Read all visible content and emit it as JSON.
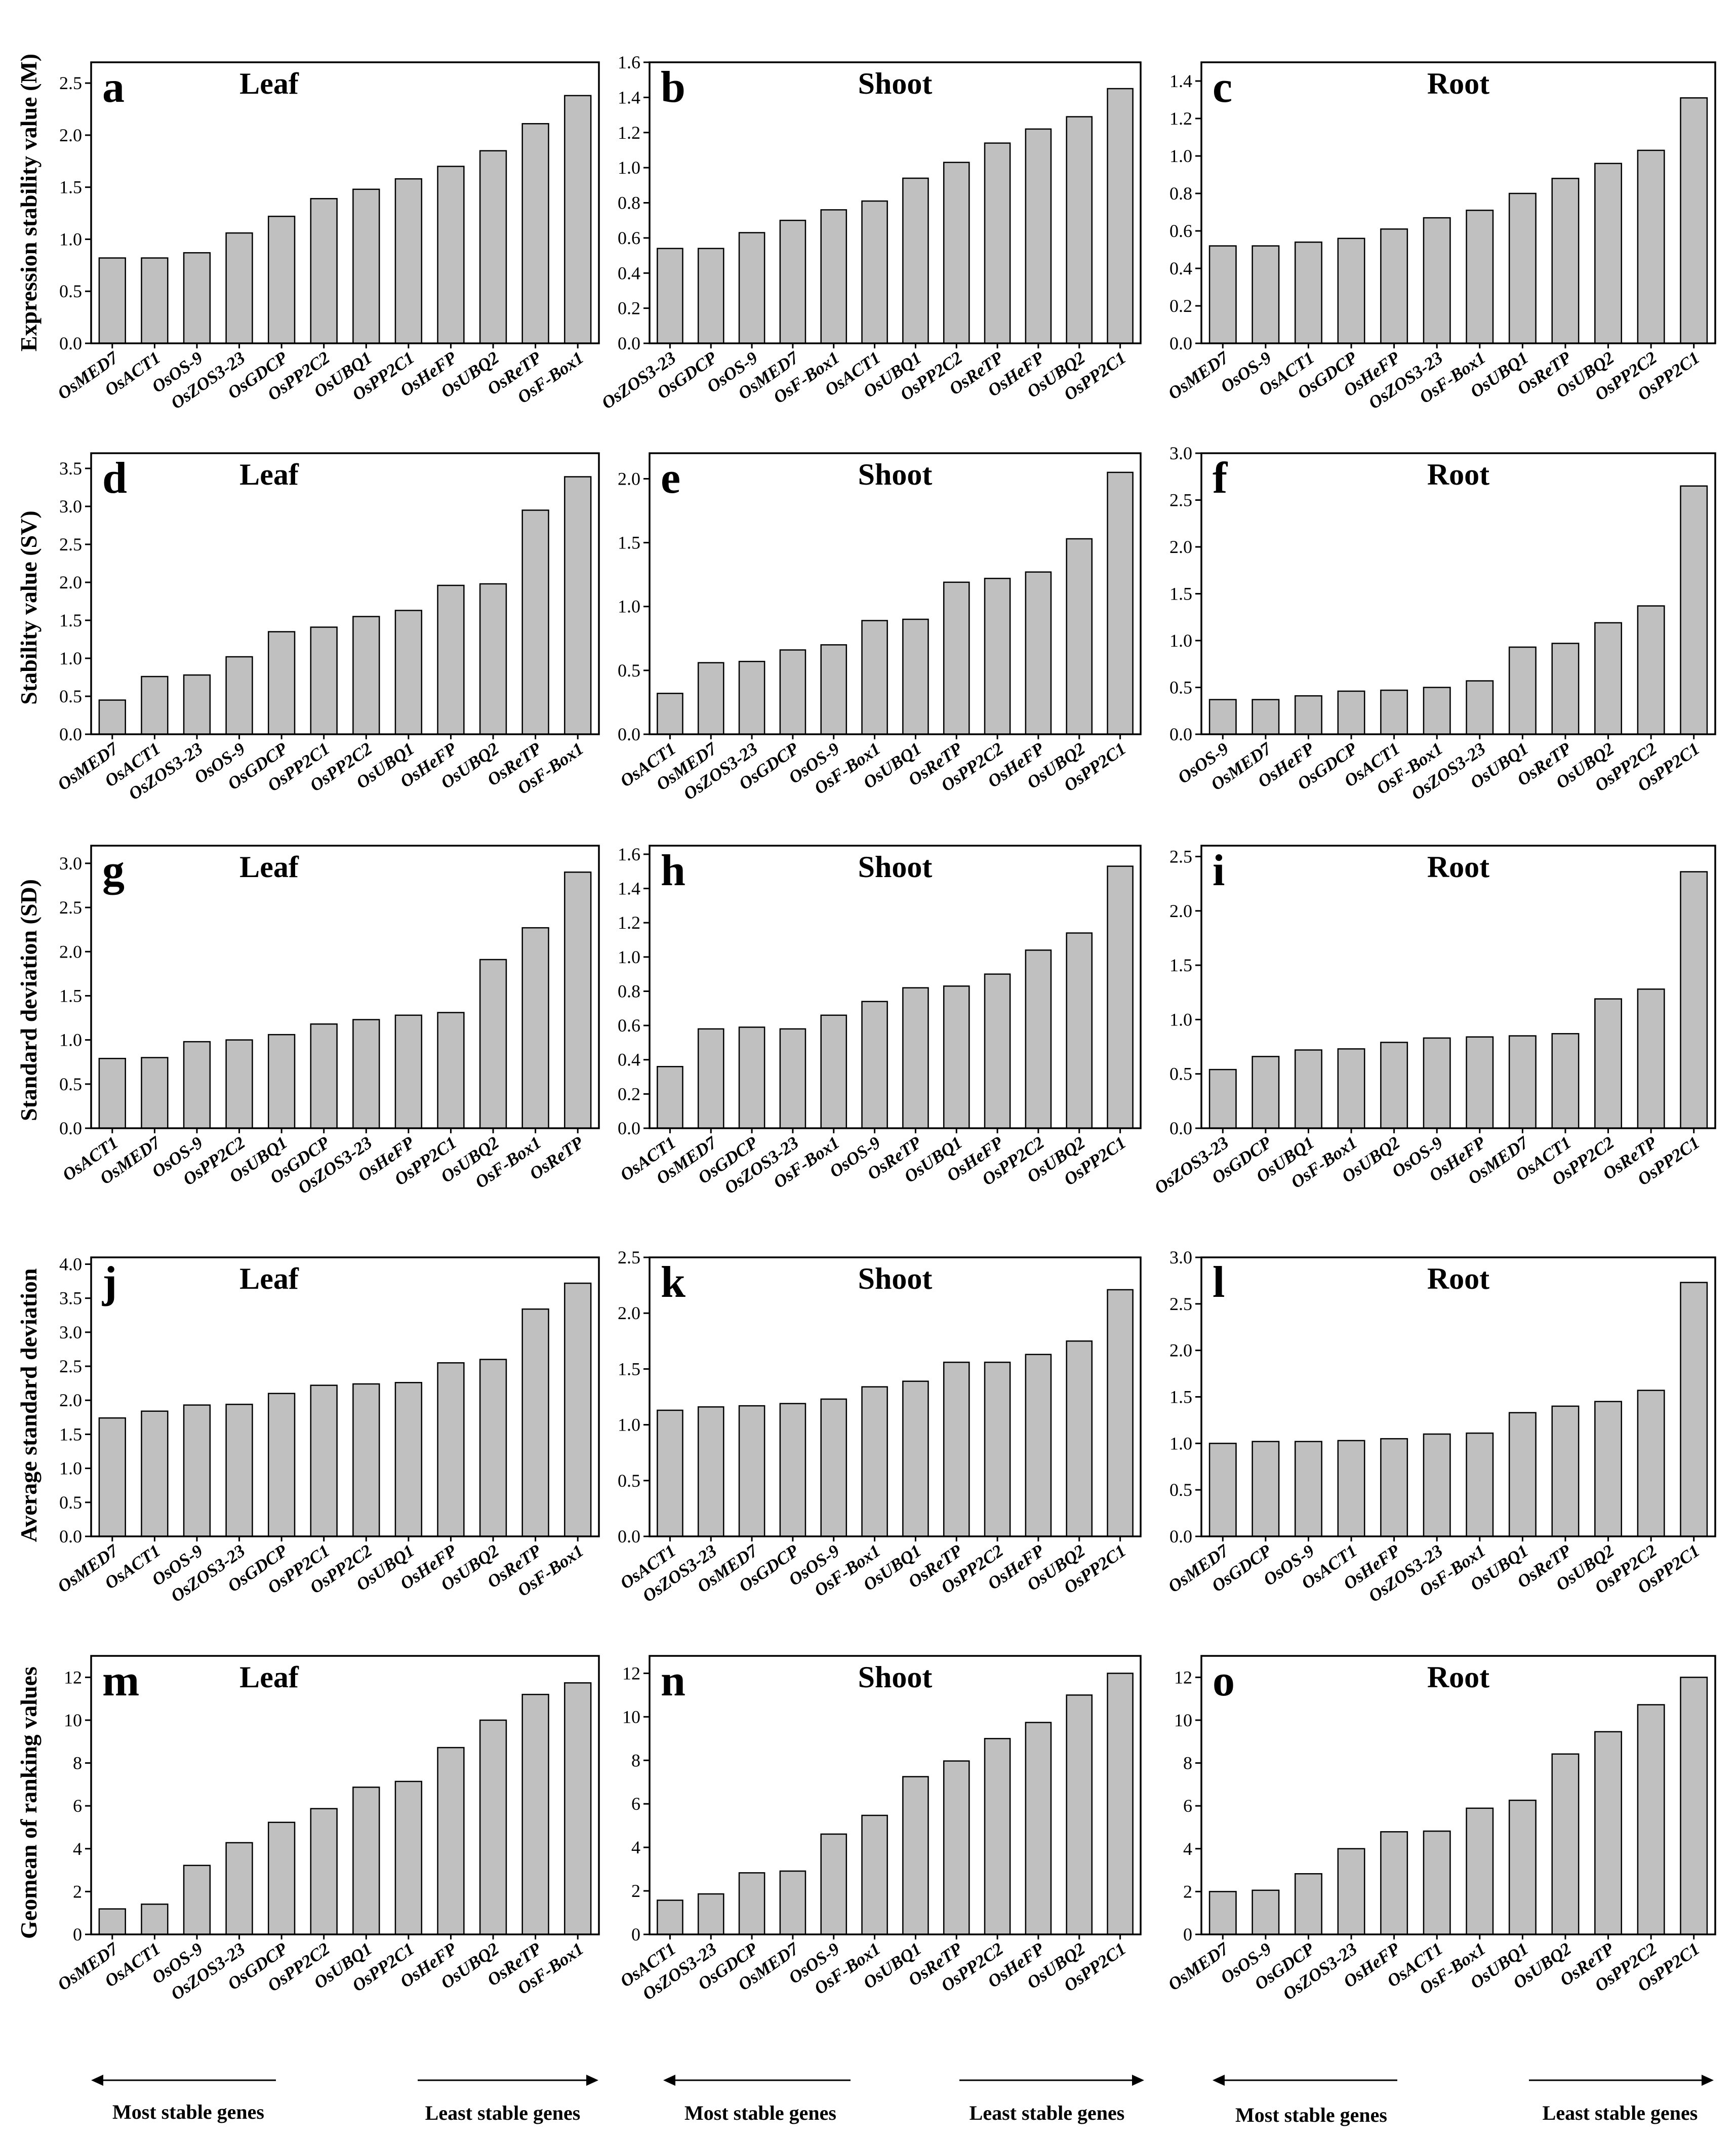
{
  "figure": {
    "row_ylabels": [
      "Expression stability value (M)",
      "Stability value (SV)",
      "Standard deviation (SD)",
      "Average standard deviation",
      "Geomean of ranking values"
    ],
    "footer": {
      "most_stable": "Most stable genes",
      "least_stable": "Least stable genes"
    }
  },
  "chart_data": [
    {
      "type": "bar",
      "panel": "a",
      "title": "Leaf",
      "ylabel": "Expression stability value (M)",
      "ylim": [
        0,
        2.7
      ],
      "yticks": [
        "0.0",
        "0.5",
        "1.0",
        "1.5",
        "2.0",
        "2.5"
      ],
      "categories": [
        "OsMED7",
        "OsACT1",
        "OsOS-9",
        "OsZOS3-23",
        "OsGDCP",
        "OsPP2C2",
        "OsUBQ1",
        "OsPP2C1",
        "OsHeFP",
        "OsUBQ2",
        "OsReTP",
        "OsF-Box1"
      ],
      "values": [
        0.82,
        0.82,
        0.87,
        1.06,
        1.22,
        1.39,
        1.48,
        1.58,
        1.7,
        1.85,
        2.11,
        2.38
      ]
    },
    {
      "type": "bar",
      "panel": "b",
      "title": "Shoot",
      "ylabel": "",
      "ylim": [
        0,
        1.6
      ],
      "yticks": [
        "0.0",
        "0.2",
        "0.4",
        "0.6",
        "0.8",
        "1.0",
        "1.2",
        "1.4",
        "1.6"
      ],
      "categories": [
        "OsZOS3-23",
        "OsGDCP",
        "OsOS-9",
        "OsMED7",
        "OsF-Box1",
        "OsACT1",
        "OsUBQ1",
        "OsPP2C2",
        "OsReTP",
        "OsHeFP",
        "OsUBQ2",
        "OsPP2C1"
      ],
      "values": [
        0.54,
        0.54,
        0.63,
        0.7,
        0.76,
        0.81,
        0.94,
        1.03,
        1.14,
        1.22,
        1.29,
        1.45
      ]
    },
    {
      "type": "bar",
      "panel": "c",
      "title": "Root",
      "ylabel": "",
      "ylim": [
        0,
        1.5
      ],
      "yticks": [
        "0.0",
        "0.2",
        "0.4",
        "0.6",
        "0.8",
        "1.0",
        "1.2",
        "1.4"
      ],
      "categories": [
        "OsMED7",
        "OsOS-9",
        "OsACT1",
        "OsGDCP",
        "OsHeFP",
        "OsZOS3-23",
        "OsF-Box1",
        "OsUBQ1",
        "OsReTP",
        "OsUBQ2",
        "OsPP2C2",
        "OsPP2C1"
      ],
      "values": [
        0.52,
        0.52,
        0.54,
        0.56,
        0.61,
        0.67,
        0.71,
        0.8,
        0.88,
        0.96,
        1.03,
        1.31
      ]
    },
    {
      "type": "bar",
      "panel": "d",
      "title": "Leaf",
      "ylabel": "Stability value (SV)",
      "ylim": [
        0,
        3.7
      ],
      "yticks": [
        "0.0",
        "0.5",
        "1.0",
        "1.5",
        "2.0",
        "2.5",
        "3.0",
        "3.5"
      ],
      "categories": [
        "OsMED7",
        "OsACT1",
        "OsZOS3-23",
        "OsOS-9",
        "OsGDCP",
        "OsPP2C1",
        "OsPP2C2",
        "OsUBQ1",
        "OsHeFP",
        "OsUBQ2",
        "OsReTP",
        "OsF-Box1"
      ],
      "values": [
        0.45,
        0.76,
        0.78,
        1.02,
        1.35,
        1.41,
        1.55,
        1.63,
        1.96,
        1.98,
        2.95,
        3.39
      ]
    },
    {
      "type": "bar",
      "panel": "e",
      "title": "Shoot",
      "ylabel": "",
      "ylim": [
        0,
        2.2
      ],
      "yticks": [
        "0.0",
        "0.5",
        "1.0",
        "1.5",
        "2.0"
      ],
      "categories": [
        "OsACT1",
        "OsMED7",
        "OsZOS3-23",
        "OsGDCP",
        "OsOS-9",
        "OsF-Box1",
        "OsUBQ1",
        "OsReTP",
        "OsPP2C2",
        "OsHeFP",
        "OsUBQ2",
        "OsPP2C1"
      ],
      "values": [
        0.32,
        0.56,
        0.57,
        0.66,
        0.7,
        0.89,
        0.9,
        1.19,
        1.22,
        1.27,
        1.53,
        2.05
      ]
    },
    {
      "type": "bar",
      "panel": "f",
      "title": "Root",
      "ylabel": "",
      "ylim": [
        0,
        3.0
      ],
      "yticks": [
        "0.0",
        "0.5",
        "1.0",
        "1.5",
        "2.0",
        "2.5",
        "3.0"
      ],
      "categories": [
        "OsOS-9",
        "OsMED7",
        "OsHeFP",
        "OsGDCP",
        "OsACT1",
        "OsF-Box1",
        "OsZOS3-23",
        "OsUBQ1",
        "OsReTP",
        "OsUBQ2",
        "OsPP2C2",
        "OsPP2C1"
      ],
      "values": [
        0.37,
        0.37,
        0.41,
        0.46,
        0.47,
        0.5,
        0.57,
        0.93,
        0.97,
        1.19,
        1.37,
        2.65
      ]
    },
    {
      "type": "bar",
      "panel": "g",
      "title": "Leaf",
      "ylabel": "Standard deviation (SD)",
      "ylim": [
        0,
        3.2
      ],
      "yticks": [
        "0.0",
        "0.5",
        "1.0",
        "1.5",
        "2.0",
        "2.5",
        "3.0"
      ],
      "categories": [
        "OsACT1",
        "OsMED7",
        "OsOS-9",
        "OsPP2C2",
        "OsUBQ1",
        "OsGDCP",
        "OsZOS3-23",
        "OsHeFP",
        "OsPP2C1",
        "OsUBQ2",
        "OsF-Box1",
        "OsReTP"
      ],
      "values": [
        0.79,
        0.8,
        0.98,
        1.0,
        1.06,
        1.18,
        1.23,
        1.28,
        1.31,
        1.91,
        2.27,
        2.9
      ]
    },
    {
      "type": "bar",
      "panel": "h",
      "title": "Shoot",
      "ylabel": "",
      "ylim": [
        0,
        1.65
      ],
      "yticks": [
        "0.0",
        "0.2",
        "0.4",
        "0.6",
        "0.8",
        "1.0",
        "1.2",
        "1.4",
        "1.6"
      ],
      "categories": [
        "OsACT1",
        "OsMED7",
        "OsGDCP",
        "OsZOS3-23",
        "OsF-Box1",
        "OsOS-9",
        "OsReTP",
        "OsUBQ1",
        "OsHeFP",
        "OsPP2C2",
        "OsUBQ2",
        "OsPP2C1"
      ],
      "values": [
        0.36,
        0.58,
        0.59,
        0.58,
        0.66,
        0.74,
        0.82,
        0.83,
        0.9,
        1.04,
        1.14,
        1.53
      ]
    },
    {
      "type": "bar",
      "panel": "i",
      "title": "Root",
      "ylabel": "",
      "ylim": [
        0,
        2.6
      ],
      "yticks": [
        "0.0",
        "0.5",
        "1.0",
        "1.5",
        "2.0",
        "2.5"
      ],
      "categories": [
        "OsZOS3-23",
        "OsGDCP",
        "OsUBQ1",
        "OsF-Box1",
        "OsUBQ2",
        "OsOS-9",
        "OsHeFP",
        "OsMED7",
        "OsACT1",
        "OsPP2C2",
        "OsReTP",
        "OsPP2C1"
      ],
      "values": [
        0.54,
        0.66,
        0.72,
        0.73,
        0.79,
        0.83,
        0.84,
        0.85,
        0.87,
        1.19,
        1.28,
        2.36
      ]
    },
    {
      "type": "bar",
      "panel": "j",
      "title": "Leaf",
      "ylabel": "Average standard deviation",
      "ylim": [
        0,
        4.1
      ],
      "yticks": [
        "0.0",
        "0.5",
        "1.0",
        "1.5",
        "2.0",
        "2.5",
        "3.0",
        "3.5",
        "4.0"
      ],
      "categories": [
        "OsMED7",
        "OsACT1",
        "OsOS-9",
        "OsZOS3-23",
        "OsGDCP",
        "OsPP2C1",
        "OsPP2C2",
        "OsUBQ1",
        "OsHeFP",
        "OsUBQ2",
        "OsReTP",
        "OsF-Box1"
      ],
      "values": [
        1.74,
        1.84,
        1.93,
        1.94,
        2.1,
        2.22,
        2.24,
        2.26,
        2.55,
        2.6,
        3.34,
        3.72
      ]
    },
    {
      "type": "bar",
      "panel": "k",
      "title": "Shoot",
      "ylabel": "",
      "ylim": [
        0,
        2.5
      ],
      "yticks": [
        "0.0",
        "0.5",
        "1.0",
        "1.5",
        "2.0",
        "2.5"
      ],
      "categories": [
        "OsACT1",
        "OsZOS3-23",
        "OsMED7",
        "OsGDCP",
        "OsOS-9",
        "OsF-Box1",
        "OsUBQ1",
        "OsReTP",
        "OsPP2C2",
        "OsHeFP",
        "OsUBQ2",
        "OsPP2C1"
      ],
      "values": [
        1.13,
        1.16,
        1.17,
        1.19,
        1.23,
        1.34,
        1.39,
        1.56,
        1.56,
        1.63,
        1.75,
        2.21
      ]
    },
    {
      "type": "bar",
      "panel": "l",
      "title": "Root",
      "ylabel": "",
      "ylim": [
        0,
        3.0
      ],
      "yticks": [
        "0.0",
        "0.5",
        "1.0",
        "1.5",
        "2.0",
        "2.5",
        "3.0"
      ],
      "categories": [
        "OsMED7",
        "OsGDCP",
        "OsOS-9",
        "OsACT1",
        "OsHeFP",
        "OsZOS3-23",
        "OsF-Box1",
        "OsUBQ1",
        "OsReTP",
        "OsUBQ2",
        "OsPP2C2",
        "OsPP2C1"
      ],
      "values": [
        1.0,
        1.02,
        1.02,
        1.03,
        1.05,
        1.1,
        1.11,
        1.33,
        1.4,
        1.45,
        1.57,
        2.73
      ]
    },
    {
      "type": "bar",
      "panel": "m",
      "title": "Leaf",
      "ylabel": "Geomean of ranking values",
      "ylim": [
        0,
        13
      ],
      "yticks": [
        "0",
        "2",
        "4",
        "6",
        "8",
        "10",
        "12"
      ],
      "categories": [
        "OsMED7",
        "OsACT1",
        "OsOS-9",
        "OsZOS3-23",
        "OsGDCP",
        "OsPP2C2",
        "OsUBQ1",
        "OsPP2C1",
        "OsHeFP",
        "OsUBQ2",
        "OsReTP",
        "OsF-Box1"
      ],
      "values": [
        1.19,
        1.41,
        3.22,
        4.28,
        5.23,
        5.87,
        6.87,
        7.14,
        8.72,
        10.0,
        11.2,
        11.74
      ]
    },
    {
      "type": "bar",
      "panel": "n",
      "title": "Shoot",
      "ylabel": "",
      "ylim": [
        0,
        12.8
      ],
      "yticks": [
        "0",
        "2",
        "4",
        "6",
        "8",
        "10",
        "12"
      ],
      "categories": [
        "OsACT1",
        "OsZOS3-23",
        "OsGDCP",
        "OsMED7",
        "OsOS-9",
        "OsF-Box1",
        "OsUBQ1",
        "OsReTP",
        "OsPP2C2",
        "OsHeFP",
        "OsUBQ2",
        "OsPP2C1"
      ],
      "values": [
        1.57,
        1.86,
        2.83,
        2.91,
        4.61,
        5.47,
        7.25,
        7.97,
        9.0,
        9.74,
        11.0,
        12.0
      ]
    },
    {
      "type": "bar",
      "panel": "o",
      "title": "Root",
      "ylabel": "",
      "ylim": [
        0,
        13
      ],
      "yticks": [
        "0",
        "2",
        "4",
        "6",
        "8",
        "10",
        "12"
      ],
      "categories": [
        "OsMED7",
        "OsOS-9",
        "OsGDCP",
        "OsZOS3-23",
        "OsHeFP",
        "OsACT1",
        "OsF-Box1",
        "OsUBQ1",
        "OsUBQ2",
        "OsReTP",
        "OsPP2C2",
        "OsPP2C1"
      ],
      "values": [
        2.0,
        2.06,
        2.83,
        4.0,
        4.79,
        4.82,
        5.89,
        6.26,
        8.42,
        9.46,
        10.72,
        12.0
      ]
    }
  ]
}
